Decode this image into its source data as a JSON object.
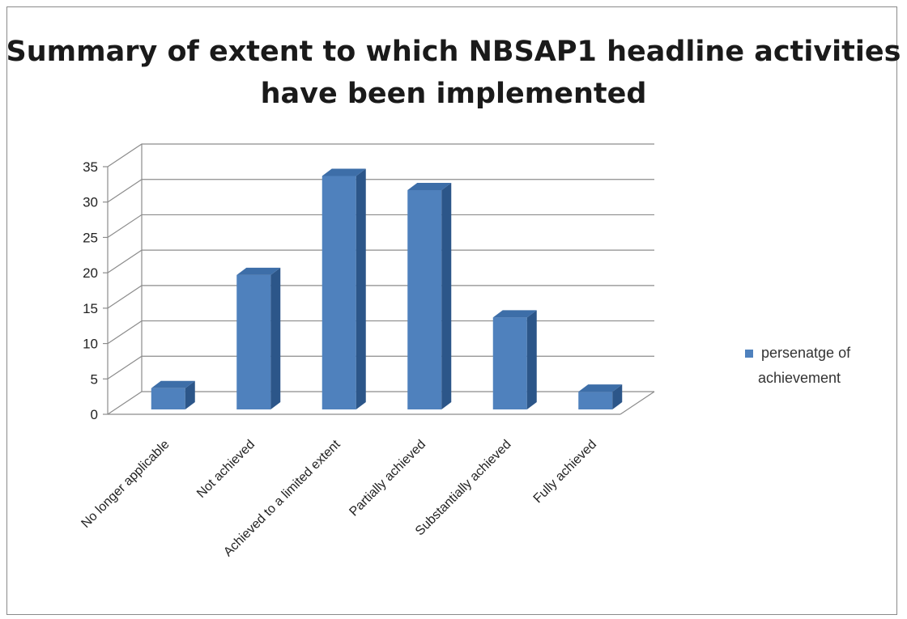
{
  "chart_data": {
    "type": "bar",
    "title": "Summary of extent to which NBSAP1 headline activities have been implemented",
    "categories": [
      "No longer applicable",
      "Not achieved",
      "Achieved to a limited extent",
      "Partially achieved",
      "Substantially achieved",
      "Fully achieved"
    ],
    "series": [
      {
        "name": "persenatge of achievement",
        "values": [
          3,
          19,
          33,
          31,
          13,
          2.5
        ]
      }
    ],
    "y_ticks": [
      0,
      5,
      10,
      15,
      20,
      25,
      30,
      35
    ],
    "ylim": [
      0,
      35
    ],
    "grid": true,
    "legend_position": "right",
    "bar_color": "#4f81bd",
    "bar_side_color": "#2c5689",
    "bar_top_color": "#3d6ea8"
  }
}
